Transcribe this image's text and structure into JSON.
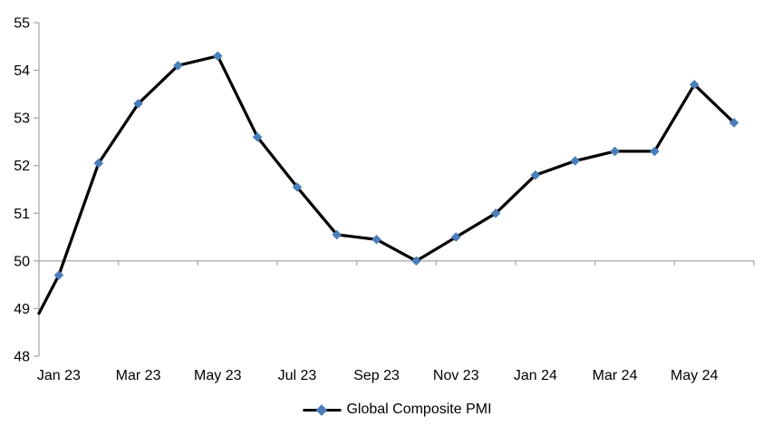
{
  "chart_data": {
    "type": "line",
    "title": "",
    "series_name": "Global Composite PMI",
    "categories": [
      "Jan 23",
      "Feb 23",
      "Mar 23",
      "Apr 23",
      "May 23",
      "Jun 23",
      "Jul 23",
      "Aug 23",
      "Sep 23",
      "Oct 23",
      "Nov 23",
      "Dec 23",
      "Jan 24",
      "Feb 24",
      "Mar 24",
      "Apr 24",
      "May 24",
      "Jun 24"
    ],
    "values": [
      49.7,
      52.05,
      53.3,
      54.1,
      54.3,
      52.6,
      51.55,
      50.55,
      50.45,
      50.0,
      50.5,
      51.0,
      51.8,
      52.1,
      52.3,
      52.3,
      53.7,
      52.9
    ],
    "leading_edge_value": 48.9,
    "x_tick_labels": [
      "Jan 23",
      "Mar 23",
      "May 23",
      "Jul 23",
      "Sep 23",
      "Nov 23",
      "Jan 24",
      "Mar 24",
      "May 24"
    ],
    "x_label_every": 2,
    "y_ticks": [
      48,
      49,
      50,
      51,
      52,
      53,
      54,
      55
    ],
    "ylim": [
      48,
      55
    ],
    "x_axis_crosses_at": 50,
    "grid": "off",
    "marker_shape": "diamond",
    "legend_position": "bottom-center",
    "colors": {
      "series_line": "#000000",
      "marker": "#4A7EBB",
      "axis": "#A6A6A6",
      "text": "#000000",
      "background": "#FFFFFF"
    }
  }
}
